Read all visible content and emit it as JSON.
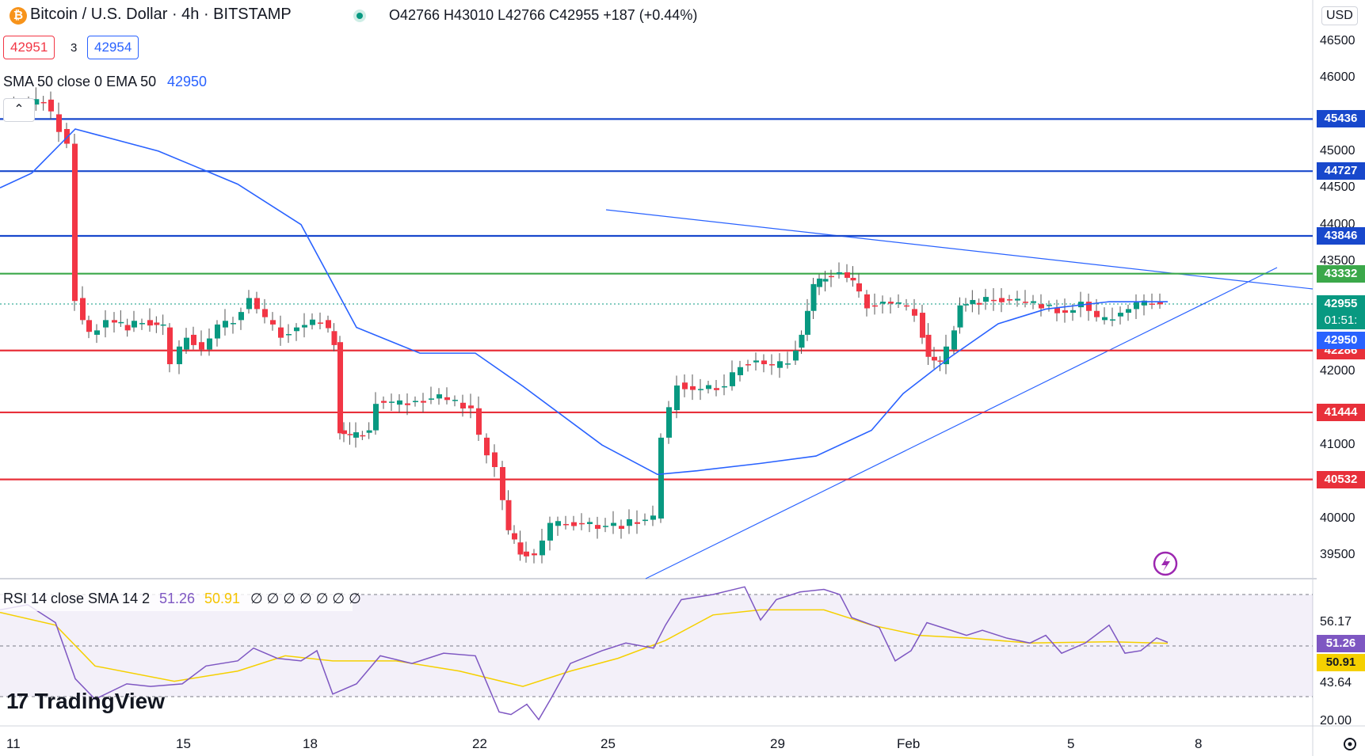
{
  "header": {
    "symbol_title": "Bitcoin / U.S. Dollar · 4h · BITSTAMP",
    "ohlc": "O42766 H43010 L42766 C42955 +187 (+0.44%)",
    "sell_price": "42951",
    "spread": "3",
    "buy_price": "42954",
    "indicator_label": "SMA 50 close 0 EMA 50",
    "indicator_value": "42950"
  },
  "price_axis": {
    "currency": "USD",
    "ticks": [
      "46500",
      "46000",
      "45000",
      "44500",
      "44000",
      "43500",
      "42000",
      "41000",
      "40000",
      "39500"
    ],
    "current_price": "42955",
    "countdown": "01:51:",
    "ema_value": "42950"
  },
  "levels": [
    {
      "value": "45436",
      "color": "#1848cc"
    },
    {
      "value": "44727",
      "color": "#1848cc"
    },
    {
      "value": "43846",
      "color": "#1848cc"
    },
    {
      "value": "43332",
      "color": "#3ba84a"
    },
    {
      "value": "42286",
      "color": "#e8303a"
    },
    {
      "value": "41444",
      "color": "#e8303a"
    },
    {
      "value": "40532",
      "color": "#e8303a"
    }
  ],
  "rsi": {
    "label": "RSI 14 close SMA 14 2",
    "rsi_value": "51.26",
    "sma_value": "50.91",
    "extra": "∅ ∅ ∅ ∅ ∅ ∅ ∅",
    "upper_band": "56.17",
    "lower_band": "43.64",
    "bottom_tick": "20.00"
  },
  "time_axis": [
    "11",
    "15",
    "18",
    "22",
    "25",
    "29",
    "Feb",
    "5",
    "8"
  ],
  "watermark": "TradingView",
  "colors": {
    "up": "#089981",
    "down": "#f23645",
    "ema": "#2962ff",
    "rsi": "#7e57c2",
    "rsi_sma": "#f5d000"
  }
}
